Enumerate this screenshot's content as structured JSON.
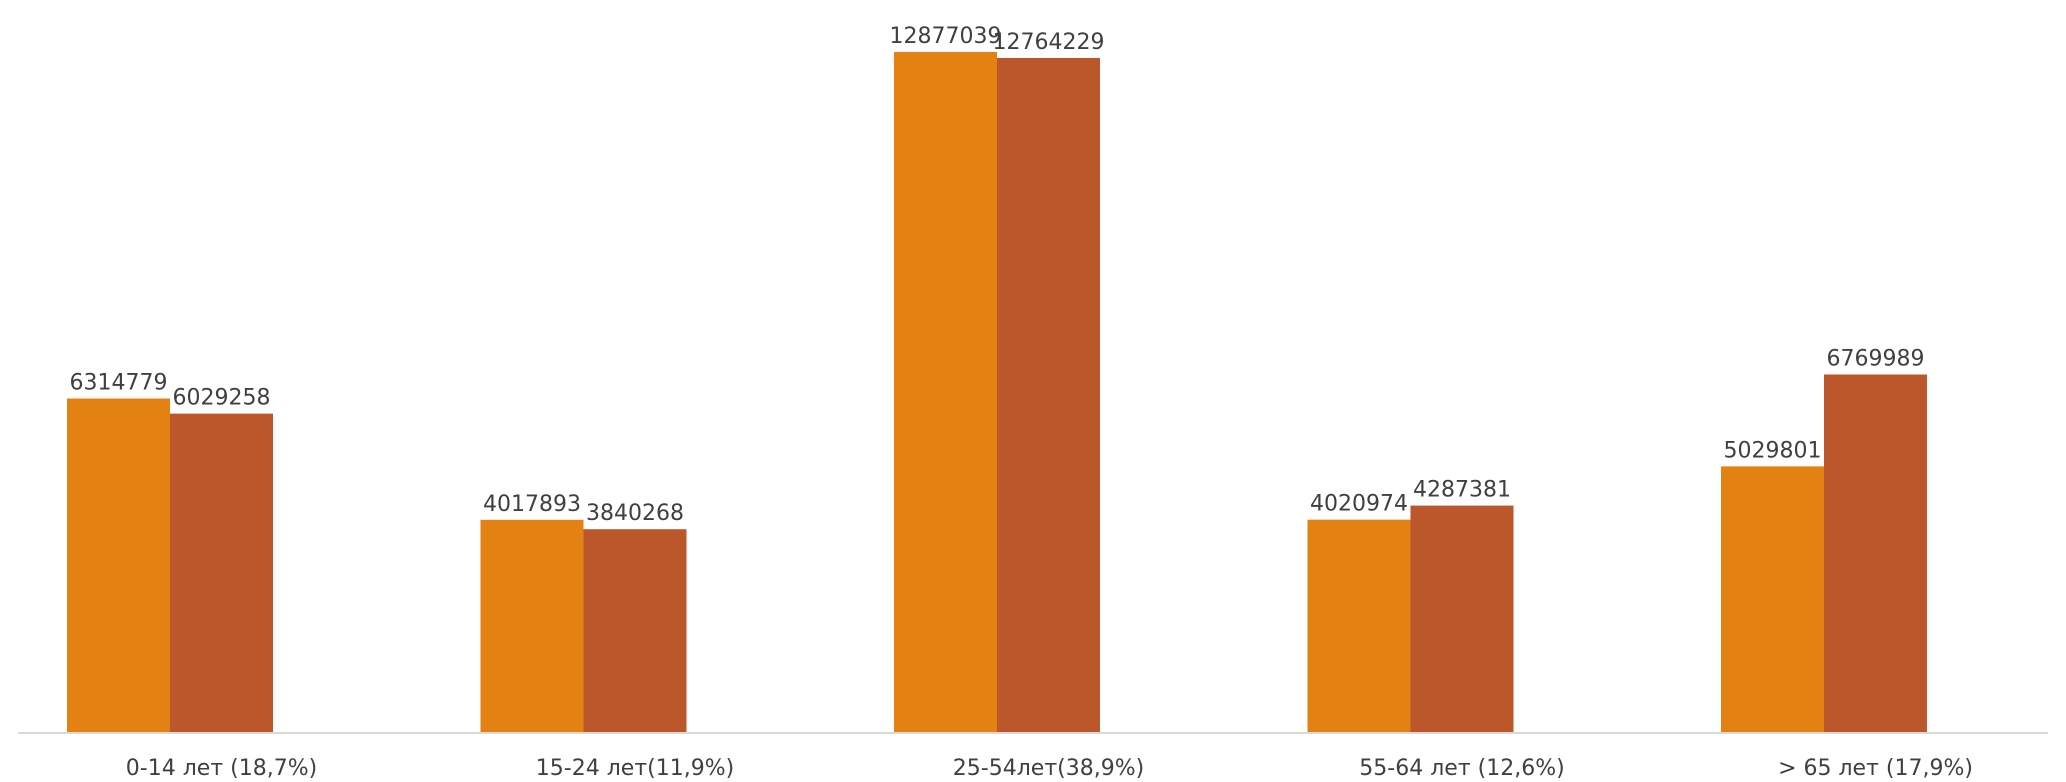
{
  "chart_data": {
    "type": "bar",
    "categories": [
      "0-14 лет (18,7%)",
      "15-24 лет(11,9%)",
      "25-54лет(38,9%)",
      "55-64 лет (12,6%)",
      "> 65 лет (17,9%)"
    ],
    "series": [
      {
        "values": [
          6314779,
          4017893,
          12877039,
          4020974,
          5029801
        ]
      },
      {
        "values": [
          6029258,
          3840268,
          12764229,
          4287381,
          6769989
        ]
      }
    ],
    "ylim": [
      0,
      13000000
    ],
    "grid": false,
    "legend": "none",
    "colors": [
      "#e38212",
      "#bb572b"
    ]
  }
}
